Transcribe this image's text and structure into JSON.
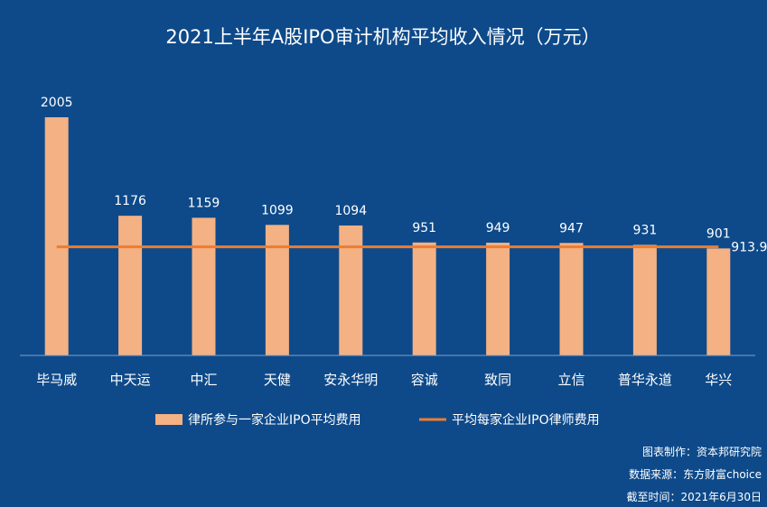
{
  "chart_data": {
    "type": "bar",
    "title": "2021上半年A股IPO审计机构平均收入情况（万元）",
    "categories": [
      "毕马威",
      "中天运",
      "中汇",
      "天健",
      "安永华明",
      "容诚",
      "致同",
      "立信",
      "普华永道",
      "华兴"
    ],
    "series": [
      {
        "name": "律所参与一家企业IPO平均费用",
        "type": "bar",
        "color": "#f4b183",
        "values": [
          2005,
          1176,
          1159,
          1099,
          1094,
          951,
          949,
          947,
          931,
          901
        ]
      },
      {
        "name": "平均每家企业IPO律师费用",
        "type": "line",
        "color": "#ed7d31",
        "value": 913.9,
        "label": "913.9"
      }
    ],
    "ylim": [
      0,
      2200
    ],
    "xlabel": "",
    "ylabel": "",
    "grid": false,
    "legend_position": "bottom"
  },
  "footer": {
    "maker": "图表制作：资本邦研究院",
    "source": "数据来源：东方财富choice",
    "date": "截至时间：2021年6月30日"
  }
}
